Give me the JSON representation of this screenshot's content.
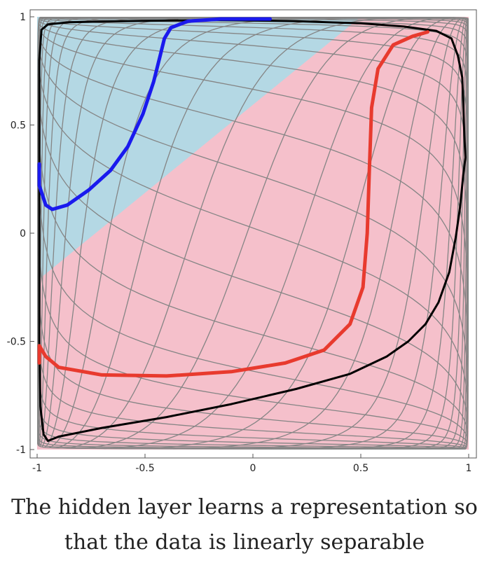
{
  "chart_data": {
    "type": "line",
    "xlim": [
      -1,
      1
    ],
    "ylim": [
      -1,
      1
    ],
    "x_ticks": [
      "-1",
      "-0.5",
      "0",
      "0.5",
      "1"
    ],
    "y_ticks": [
      "1",
      "0.5",
      "0",
      "-0.5",
      "-1"
    ],
    "grid": false,
    "background_regions": {
      "blue_region_boundary": [
        [
          -1,
          1
        ],
        [
          0.5,
          1
        ],
        [
          -1,
          -0.22
        ]
      ],
      "colors": {
        "blue": "#b4d8e4",
        "pink": "#f5c0cb"
      }
    },
    "series": [
      {
        "color": "#1a1aee",
        "points": [
          [
            -0.99,
            0.32
          ],
          [
            -0.99,
            0.22
          ],
          [
            -0.96,
            0.13
          ],
          [
            -0.93,
            0.11
          ],
          [
            -0.86,
            0.13
          ],
          [
            -0.76,
            0.2
          ],
          [
            -0.66,
            0.29
          ],
          [
            -0.58,
            0.4
          ],
          [
            -0.51,
            0.55
          ],
          [
            -0.46,
            0.7
          ],
          [
            -0.43,
            0.82
          ],
          [
            -0.41,
            0.9
          ],
          [
            -0.38,
            0.95
          ],
          [
            -0.3,
            0.98
          ],
          [
            -0.15,
            0.99
          ],
          [
            0.08,
            0.99
          ]
        ]
      },
      {
        "color": "#e83a2e",
        "points": [
          [
            -0.99,
            -0.6
          ],
          [
            -0.99,
            -0.52
          ],
          [
            -0.96,
            -0.57
          ],
          [
            -0.9,
            -0.62
          ],
          [
            -0.7,
            -0.655
          ],
          [
            -0.4,
            -0.66
          ],
          [
            -0.1,
            -0.64
          ],
          [
            0.15,
            -0.6
          ],
          [
            0.33,
            -0.54
          ],
          [
            0.45,
            -0.42
          ],
          [
            0.51,
            -0.25
          ],
          [
            0.53,
            0.0
          ],
          [
            0.54,
            0.3
          ],
          [
            0.55,
            0.58
          ],
          [
            0.58,
            0.76
          ],
          [
            0.65,
            0.87
          ],
          [
            0.74,
            0.91
          ],
          [
            0.81,
            0.93
          ]
        ]
      }
    ],
    "boundary_color": "#000000",
    "boundary_curve": [
      [
        -0.95,
        -0.96
      ],
      [
        -0.9,
        -0.94
      ],
      [
        -0.7,
        -0.9
      ],
      [
        -0.4,
        -0.85
      ],
      [
        -0.1,
        -0.79
      ],
      [
        0.2,
        -0.72
      ],
      [
        0.45,
        -0.65
      ],
      [
        0.62,
        -0.57
      ],
      [
        0.72,
        -0.5
      ],
      [
        0.8,
        -0.42
      ],
      [
        0.86,
        -0.32
      ],
      [
        0.91,
        -0.18
      ],
      [
        0.94,
        -0.02
      ],
      [
        0.96,
        0.12
      ],
      [
        0.975,
        0.27
      ],
      [
        0.985,
        0.35
      ],
      [
        0.98,
        0.45
      ],
      [
        0.975,
        0.6
      ],
      [
        0.97,
        0.72
      ],
      [
        0.95,
        0.82
      ],
      [
        0.92,
        0.9
      ],
      [
        0.85,
        0.935
      ],
      [
        0.7,
        0.955
      ],
      [
        0.5,
        0.97
      ],
      [
        0.2,
        0.98
      ],
      [
        -0.2,
        0.985
      ],
      [
        -0.6,
        0.98
      ],
      [
        -0.85,
        0.975
      ],
      [
        -0.95,
        0.965
      ],
      [
        -0.98,
        0.94
      ],
      [
        -0.99,
        0.8
      ],
      [
        -0.99,
        0.5
      ],
      [
        -0.99,
        0.0
      ],
      [
        -0.99,
        -0.5
      ],
      [
        -0.985,
        -0.8
      ],
      [
        -0.97,
        -0.93
      ],
      [
        -0.95,
        -0.96
      ]
    ]
  },
  "caption": {
    "line1": "The hidden layer learns a representation so",
    "line2": "that the data is linearly separable"
  }
}
